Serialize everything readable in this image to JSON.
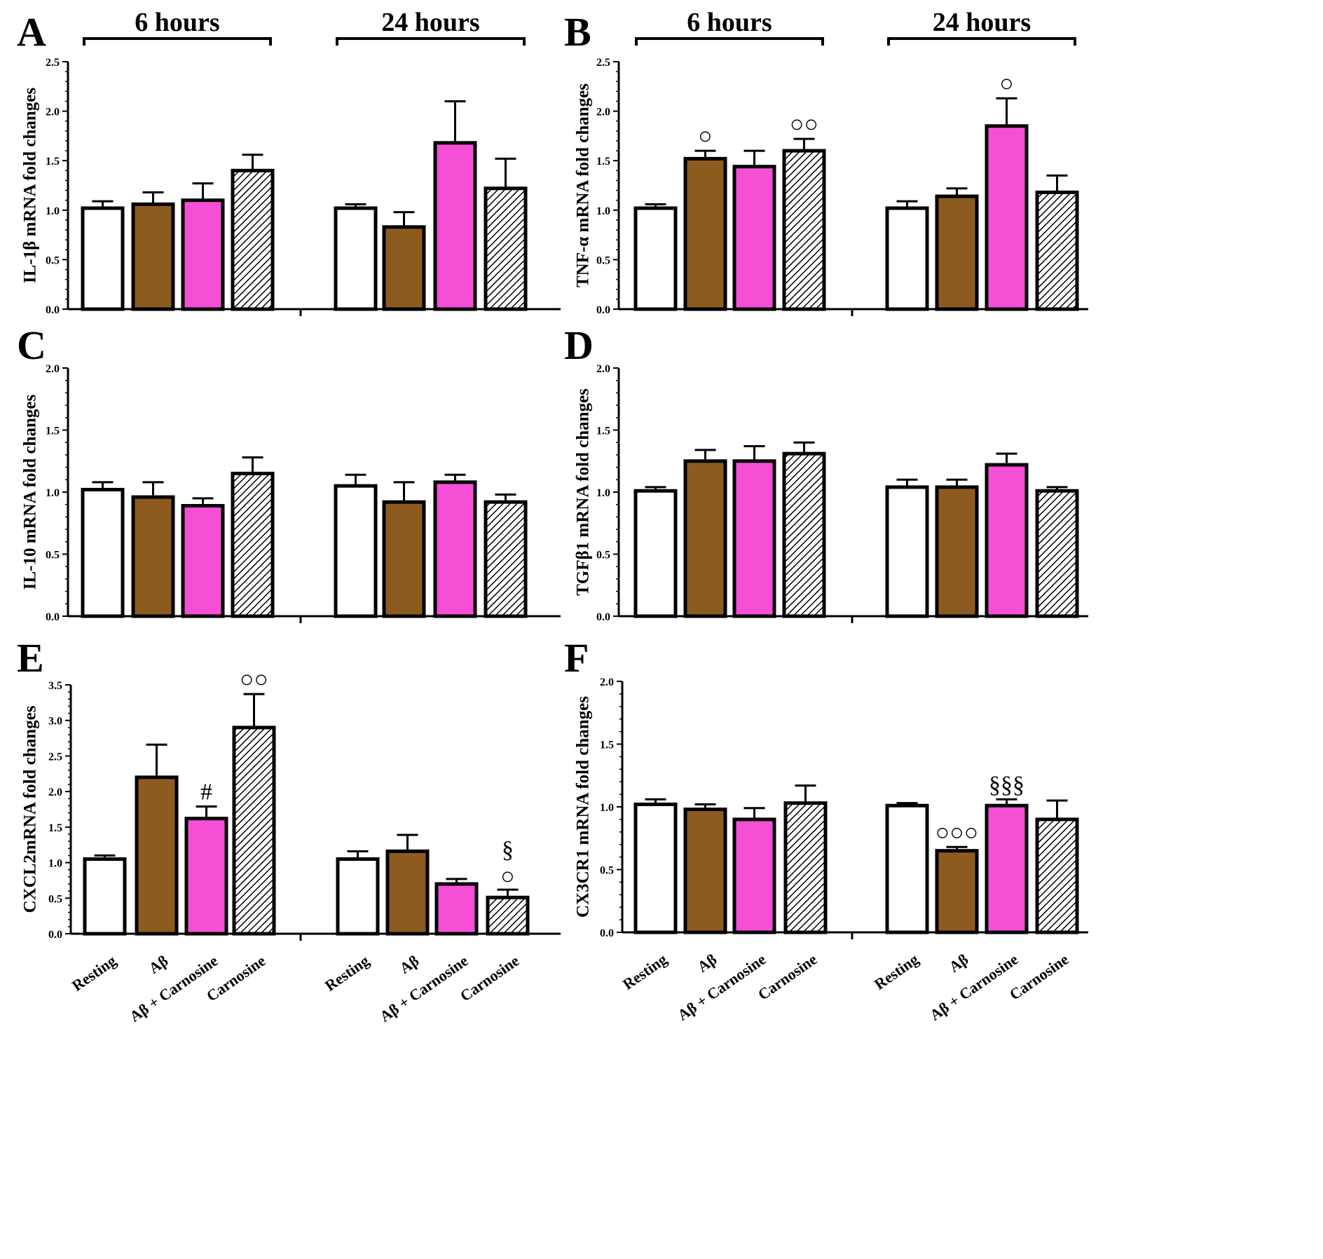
{
  "figure": {
    "groups": [
      "6 hours",
      "24 hours"
    ],
    "categories": [
      "Resting",
      "Aβ",
      "Aβ + Carnosine",
      "Carnosine"
    ],
    "colors": {
      "Resting": "#ffffff",
      "Aβ": "#8d5b20",
      "Aβ + Carnosine": "#f54fd6",
      "Carnosine": "hatched"
    }
  },
  "chart_data": [
    {
      "panel": "A",
      "type": "bar",
      "ylabel": "IL-1β mRNA fold changes",
      "ylim": [
        0,
        2.5
      ],
      "yticks": [
        "0.0",
        "0.5",
        "1.0",
        "1.5",
        "2.0",
        "2.5"
      ],
      "groups": [
        "6 hours",
        "24 hours"
      ],
      "categories": [
        "Resting",
        "Aβ",
        "Aβ + Carnosine",
        "Carnosine"
      ],
      "series": [
        {
          "group": "6 hours",
          "values": [
            1.02,
            1.06,
            1.1,
            1.4
          ],
          "errors": [
            0.07,
            0.12,
            0.17,
            0.16
          ],
          "annotations": [
            "",
            "",
            "",
            ""
          ]
        },
        {
          "group": "24 hours",
          "values": [
            1.02,
            0.83,
            1.68,
            1.22
          ],
          "errors": [
            0.04,
            0.15,
            0.42,
            0.3
          ],
          "annotations": [
            "",
            "",
            "",
            ""
          ]
        }
      ]
    },
    {
      "panel": "B",
      "type": "bar",
      "ylabel": "TNF-α mRNA fold changes",
      "ylim": [
        0,
        2.5
      ],
      "yticks": [
        "0.0",
        "0.5",
        "1.0",
        "1.5",
        "2.0",
        "2.5"
      ],
      "groups": [
        "6 hours",
        "24 hours"
      ],
      "categories": [
        "Resting",
        "Aβ",
        "Aβ + Carnosine",
        "Carnosine"
      ],
      "series": [
        {
          "group": "6 hours",
          "values": [
            1.02,
            1.52,
            1.44,
            1.6
          ],
          "errors": [
            0.04,
            0.08,
            0.16,
            0.12
          ],
          "annotations": [
            "",
            "○",
            "",
            "○○"
          ]
        },
        {
          "group": "24 hours",
          "values": [
            1.02,
            1.14,
            1.85,
            1.18
          ],
          "errors": [
            0.07,
            0.08,
            0.28,
            0.17
          ],
          "annotations": [
            "",
            "",
            "○",
            ""
          ]
        }
      ]
    },
    {
      "panel": "C",
      "type": "bar",
      "ylabel": "IL-10 mRNA fold changes",
      "ylim": [
        0,
        2.0
      ],
      "yticks": [
        "0.0",
        "0.5",
        "1.0",
        "1.5",
        "2.0"
      ],
      "groups": [
        "6 hours",
        "24 hours"
      ],
      "categories": [
        "Resting",
        "Aβ",
        "Aβ + Carnosine",
        "Carnosine"
      ],
      "series": [
        {
          "group": "6 hours",
          "values": [
            1.02,
            0.96,
            0.89,
            1.15
          ],
          "errors": [
            0.06,
            0.12,
            0.06,
            0.13
          ],
          "annotations": [
            "",
            "",
            "",
            ""
          ]
        },
        {
          "group": "24 hours",
          "values": [
            1.05,
            0.92,
            1.08,
            0.92
          ],
          "errors": [
            0.09,
            0.16,
            0.06,
            0.06
          ],
          "annotations": [
            "",
            "",
            "",
            ""
          ]
        }
      ]
    },
    {
      "panel": "D",
      "type": "bar",
      "ylabel": "TGFβ1 mRNA fold changes",
      "ylim": [
        0,
        2.0
      ],
      "yticks": [
        "0.0",
        "0.5",
        "1.0",
        "1.5",
        "2.0"
      ],
      "groups": [
        "6 hours",
        "24 hours"
      ],
      "categories": [
        "Resting",
        "Aβ",
        "Aβ + Carnosine",
        "Carnosine"
      ],
      "series": [
        {
          "group": "6 hours",
          "values": [
            1.01,
            1.25,
            1.25,
            1.31
          ],
          "errors": [
            0.03,
            0.09,
            0.12,
            0.09
          ],
          "annotations": [
            "",
            "",
            "",
            ""
          ]
        },
        {
          "group": "24 hours",
          "values": [
            1.04,
            1.04,
            1.22,
            1.01
          ],
          "errors": [
            0.06,
            0.06,
            0.09,
            0.03
          ],
          "annotations": [
            "",
            "",
            "",
            ""
          ]
        }
      ]
    },
    {
      "panel": "E",
      "type": "bar",
      "ylabel": "CXCL2mRNA fold changes",
      "ylim": [
        0,
        3.5
      ],
      "yticks": [
        "0.0",
        "0.5",
        "1.0",
        "1.5",
        "2.0",
        "2.5",
        "3.0",
        "3.5"
      ],
      "groups": [
        "6 hours",
        "24 hours"
      ],
      "categories": [
        "Resting",
        "Aβ",
        "Aβ + Carnosine",
        "Carnosine"
      ],
      "series": [
        {
          "group": "6 hours",
          "values": [
            1.05,
            2.2,
            1.62,
            2.9
          ],
          "errors": [
            0.05,
            0.46,
            0.17,
            0.47
          ],
          "annotations": [
            "",
            "",
            "#",
            "○○"
          ]
        },
        {
          "group": "24 hours",
          "values": [
            1.05,
            1.16,
            0.7,
            0.51
          ],
          "errors": [
            0.11,
            0.23,
            0.07,
            0.11
          ],
          "annotations": [
            "",
            "",
            "",
            "○ §"
          ]
        }
      ]
    },
    {
      "panel": "F",
      "type": "bar",
      "ylabel": "CX3CR1 mRNA fold changes",
      "ylim": [
        0,
        2.0
      ],
      "yticks": [
        "0.0",
        "0.5",
        "1.0",
        "1.5",
        "2.0"
      ],
      "groups": [
        "6 hours",
        "24 hours"
      ],
      "categories": [
        "Resting",
        "Aβ",
        "Aβ + Carnosine",
        "Carnosine"
      ],
      "series": [
        {
          "group": "6 hours",
          "values": [
            1.02,
            0.98,
            0.9,
            1.03
          ],
          "errors": [
            0.04,
            0.04,
            0.09,
            0.14
          ],
          "annotations": [
            "",
            "",
            "",
            ""
          ]
        },
        {
          "group": "24 hours",
          "values": [
            1.01,
            0.65,
            1.01,
            0.9
          ],
          "errors": [
            0.02,
            0.03,
            0.05,
            0.15
          ],
          "annotations": [
            "",
            "○○○",
            "§§§",
            ""
          ]
        }
      ]
    }
  ]
}
